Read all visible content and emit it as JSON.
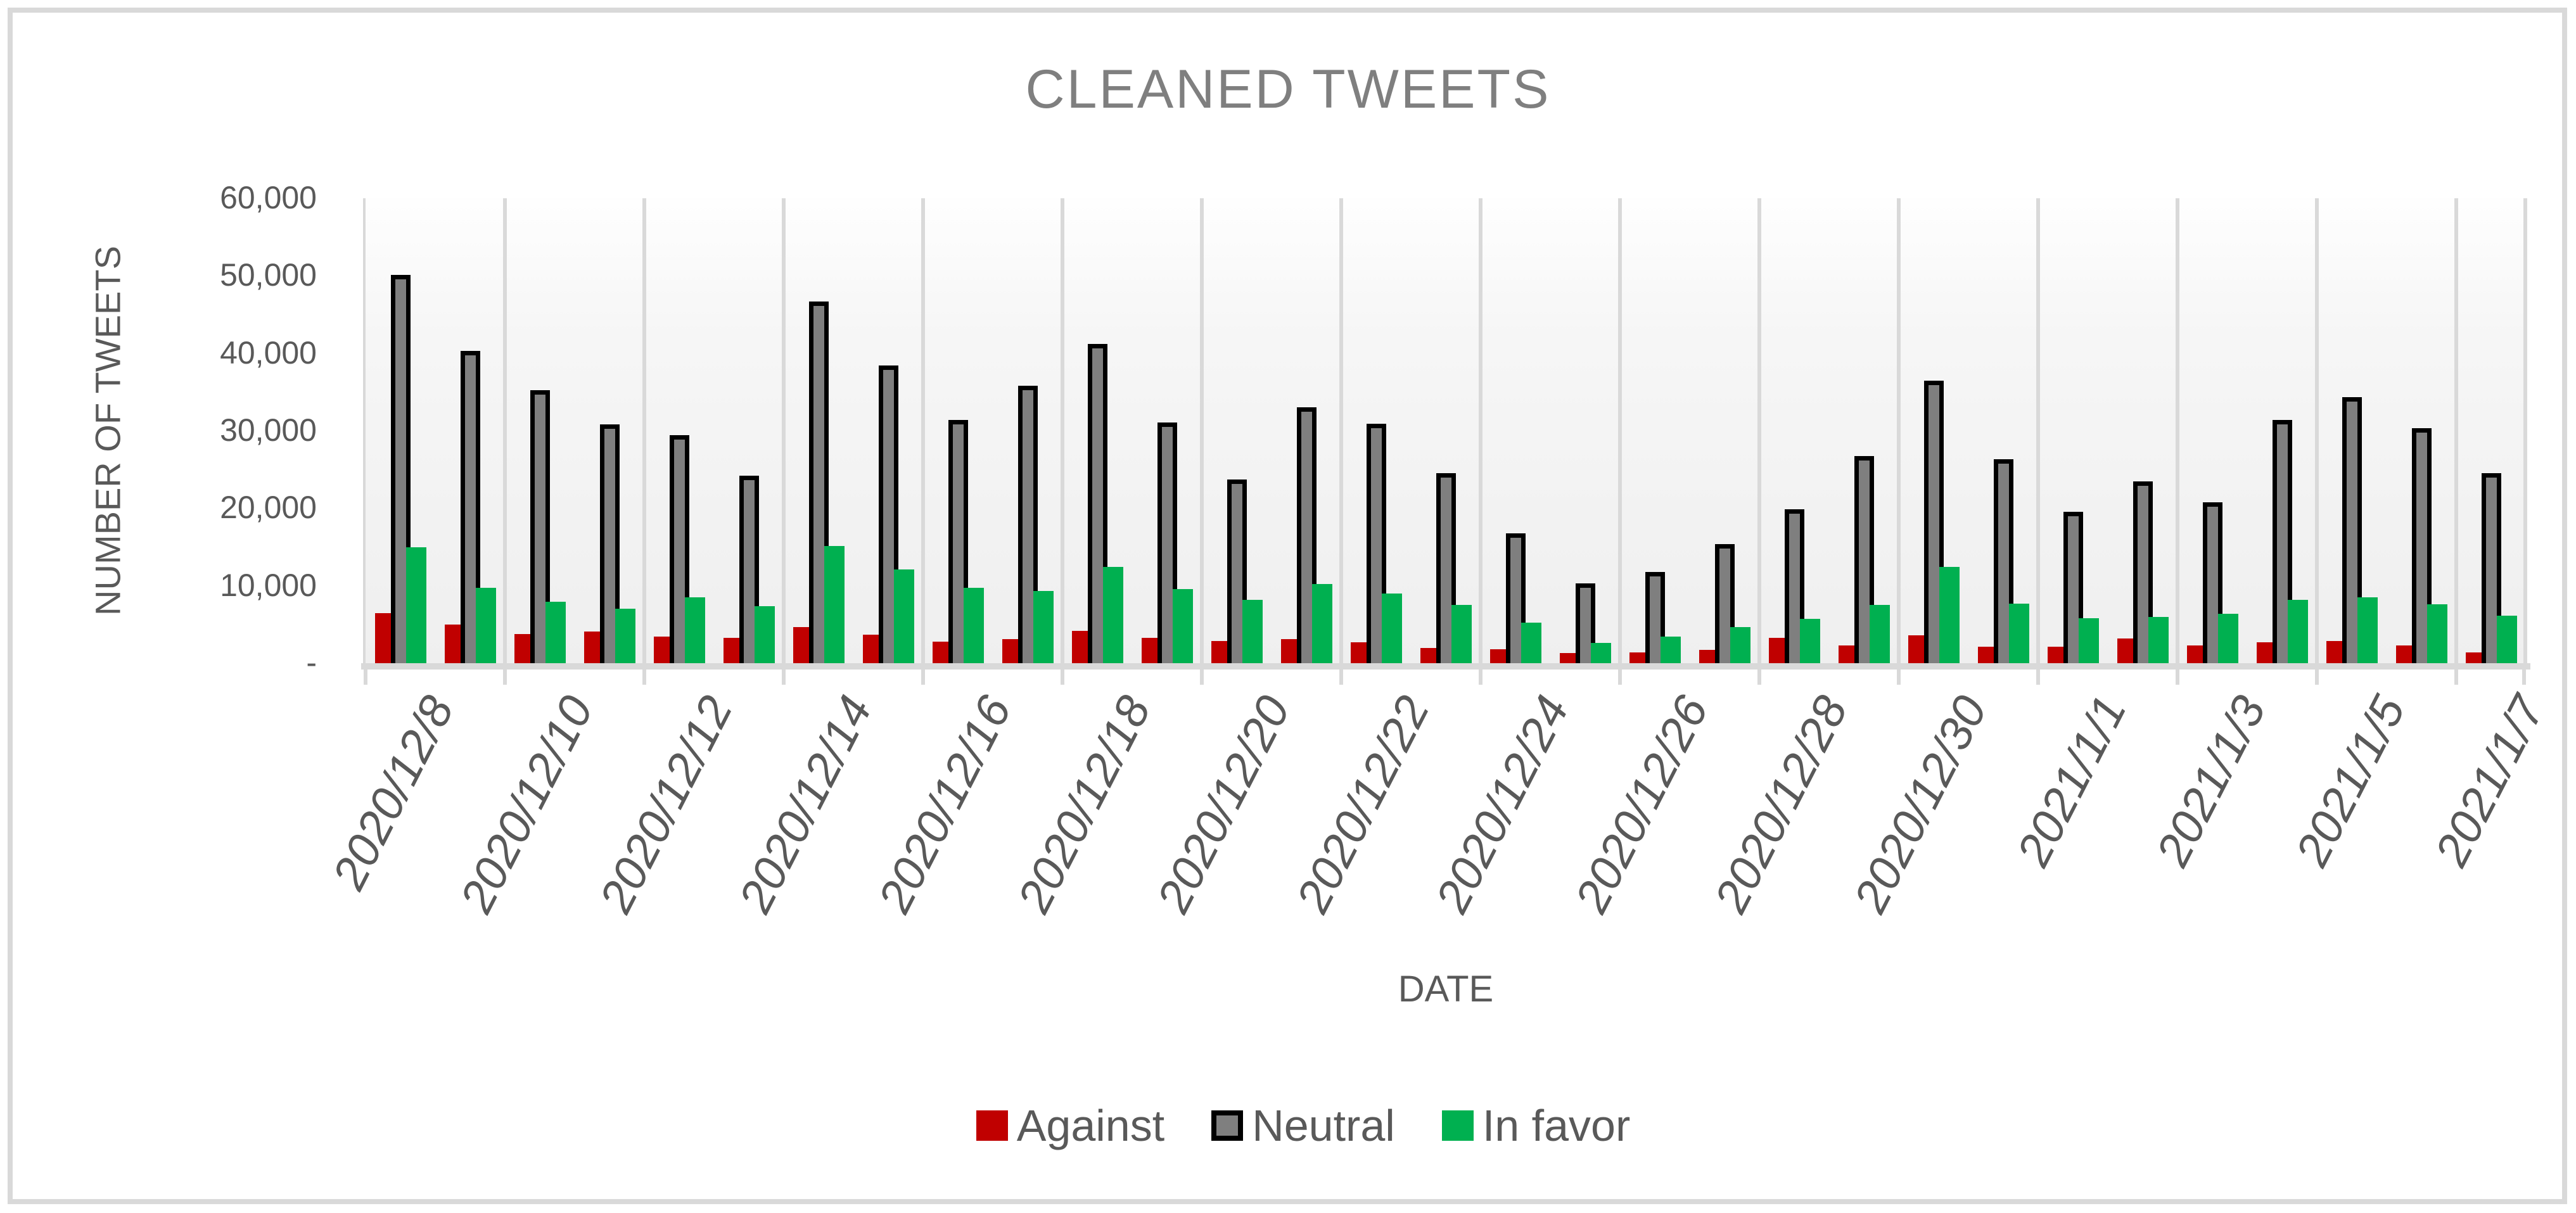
{
  "title": "CLEANED TWEETS",
  "axes": {
    "y_title": "NUMBER OF TWEETS",
    "x_title": "DATE"
  },
  "legend": {
    "items": [
      {
        "label": "Against",
        "color": "#C00000",
        "border": null
      },
      {
        "label": "Neutral",
        "color": "#7F7F7F",
        "border": "#000000"
      },
      {
        "label": "In favor",
        "color": "#00B050",
        "border": null
      }
    ]
  },
  "colors": {
    "title_text": "#7F7F7F",
    "axis_text": "#595959",
    "gridline": "#D9D9D9",
    "against": "#C00000",
    "neutral_fill": "#7F7F7F",
    "neutral_border": "#000000",
    "in_favor": "#00B050",
    "figure_border": "#D9D9D9"
  },
  "chart_data": {
    "type": "bar",
    "title": "CLEANED TWEETS",
    "xlabel": "DATE",
    "ylabel": "NUMBER OF TWEETS",
    "ylim": [
      0,
      60000
    ],
    "grid": "vertical-only",
    "legend_position": "bottom",
    "y_ticks": [
      {
        "value": 60000,
        "label": "60,000"
      },
      {
        "value": 50000,
        "label": "50,000"
      },
      {
        "value": 40000,
        "label": "40,000"
      },
      {
        "value": 30000,
        "label": "30,000"
      },
      {
        "value": 20000,
        "label": "20,000"
      },
      {
        "value": 10000,
        "label": "10,000"
      },
      {
        "value": 0,
        "label": "-"
      }
    ],
    "x_tick_interval": 2,
    "x_tick_labels": [
      "2020/12/8",
      "2020/12/10",
      "2020/12/12",
      "2020/12/14",
      "2020/12/16",
      "2020/12/18",
      "2020/12/20",
      "2020/12/22",
      "2020/12/24",
      "2020/12/26",
      "2020/12/28",
      "2020/12/30",
      "2021/1/1",
      "2021/1/3",
      "2021/1/5",
      "2021/1/7"
    ],
    "categories": [
      "2020/12/8",
      "2020/12/9",
      "2020/12/10",
      "2020/12/11",
      "2020/12/12",
      "2020/12/13",
      "2020/12/14",
      "2020/12/15",
      "2020/12/16",
      "2020/12/17",
      "2020/12/18",
      "2020/12/19",
      "2020/12/20",
      "2020/12/21",
      "2020/12/22",
      "2020/12/23",
      "2020/12/24",
      "2020/12/25",
      "2020/12/26",
      "2020/12/27",
      "2020/12/28",
      "2020/12/29",
      "2020/12/30",
      "2020/12/31",
      "2021/1/1",
      "2021/1/2",
      "2021/1/3",
      "2021/1/4",
      "2021/1/5",
      "2021/1/6",
      "2021/1/7"
    ],
    "series": [
      {
        "name": "Against",
        "color": "#C00000",
        "values": [
          6500,
          5000,
          3800,
          4100,
          3400,
          3300,
          4700,
          3700,
          2800,
          3100,
          4200,
          3300,
          2900,
          3100,
          2700,
          2000,
          1800,
          1300,
          1400,
          1700,
          3300,
          2300,
          3600,
          2100,
          2100,
          3200,
          2300,
          2700,
          2900,
          2300,
          1400
        ]
      },
      {
        "name": "Neutral",
        "color": "#7F7F7F",
        "border_color": "#000000",
        "values": [
          50100,
          40300,
          35200,
          30800,
          29400,
          24200,
          46700,
          38400,
          31400,
          35800,
          41200,
          31100,
          23700,
          33000,
          30900,
          24500,
          16800,
          10300,
          11800,
          15400,
          19900,
          26700,
          36500,
          26300,
          19500,
          23500,
          20800,
          31400,
          34300,
          30300,
          24500
        ]
      },
      {
        "name": "In favor",
        "color": "#00B050",
        "values": [
          15000,
          9700,
          7900,
          7000,
          8500,
          7400,
          15100,
          12100,
          9700,
          9300,
          12400,
          9600,
          8200,
          10200,
          9000,
          7500,
          5200,
          2600,
          3400,
          4700,
          5700,
          7500,
          12400,
          7700,
          5800,
          6000,
          6400,
          8200,
          8500,
          7600,
          6100
        ]
      }
    ]
  }
}
